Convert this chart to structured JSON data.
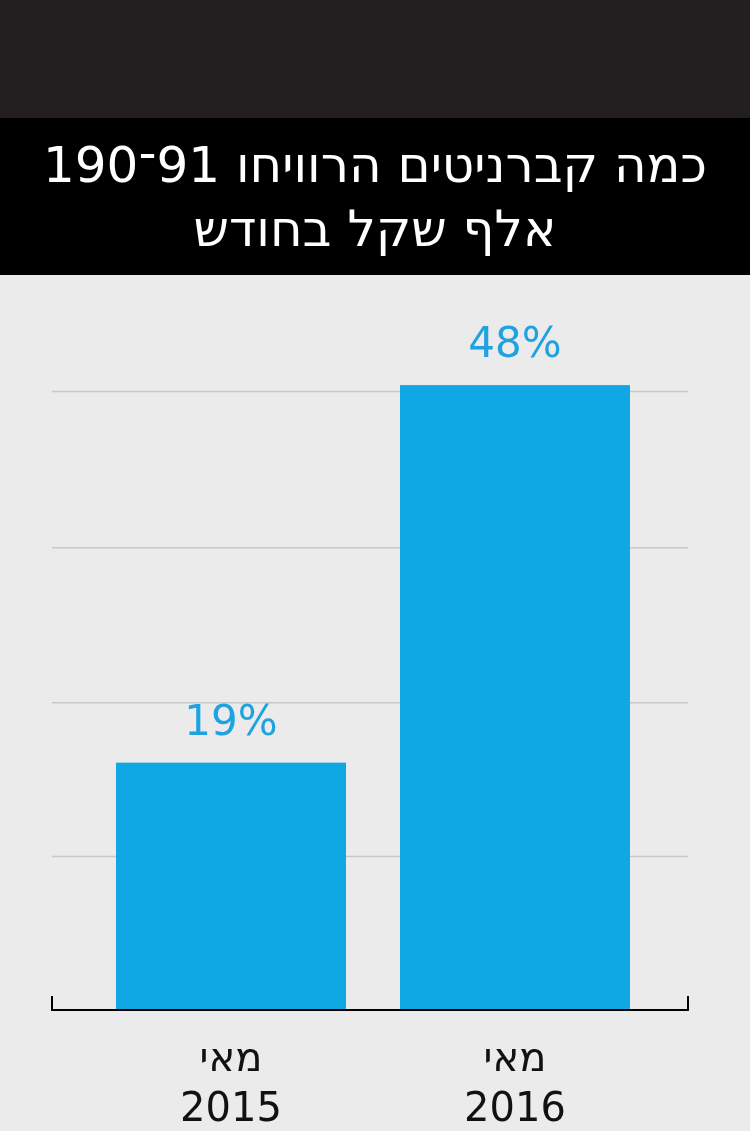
{
  "chart_data": {
    "type": "bar",
    "title": "כמה קברניטים הרוויחו 91־190 אלף שקל בחודש",
    "categories": [
      "מאי 2015",
      "מאי 2016"
    ],
    "values": [
      19,
      48
    ],
    "color": "#0fa8e4",
    "value_labels": [
      "19%",
      "48%"
    ],
    "yticks": [
      {
        "value": 11.8,
        "label": null
      },
      {
        "value": 23.6,
        "label": null
      },
      {
        "value": 35.5,
        "label": null
      },
      {
        "value": 47.5,
        "label": null
      }
    ],
    "grid": "y",
    "tick_labels": "x"
  }
}
